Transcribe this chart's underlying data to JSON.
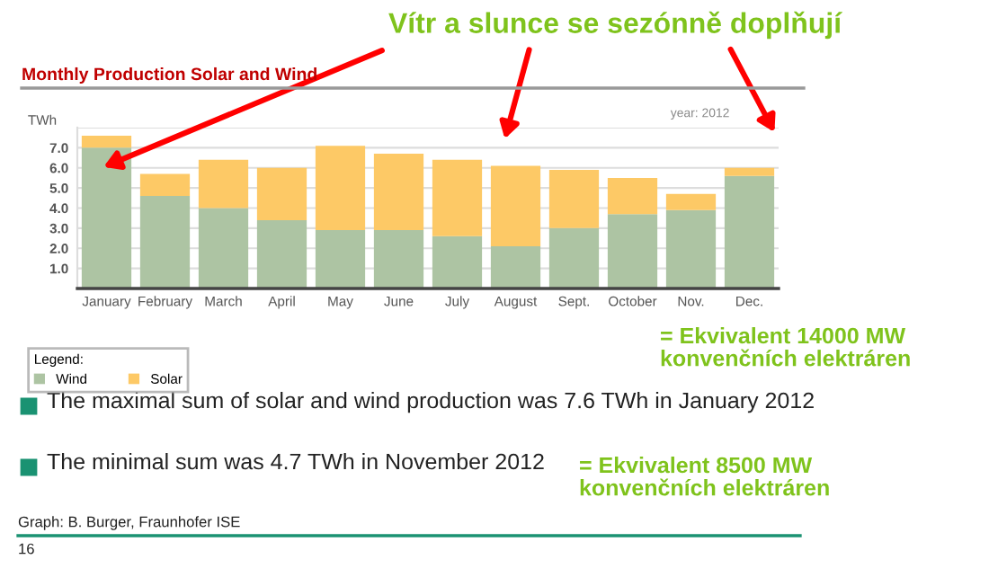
{
  "chart_data": {
    "type": "bar",
    "title": "Monthly Production Solar and Wind",
    "ylabel": "TWh",
    "legend_title": "Legend:",
    "stacked": true,
    "categories": [
      "January",
      "February",
      "March",
      "April",
      "May",
      "June",
      "July",
      "August",
      "Sept.",
      "October",
      "Nov.",
      "Dec."
    ],
    "series": [
      {
        "name": "Wind",
        "color": "#adc4a3",
        "values": [
          7.0,
          4.6,
          4.0,
          3.4,
          2.9,
          2.9,
          2.6,
          2.1,
          3.0,
          3.7,
          3.9,
          5.6
        ]
      },
      {
        "name": "Solar",
        "color": "#fdc966",
        "values": [
          0.6,
          1.1,
          2.4,
          2.6,
          4.2,
          3.8,
          3.8,
          4.0,
          2.9,
          1.8,
          0.8,
          0.4
        ]
      }
    ],
    "ylim": [
      0,
      8
    ],
    "yticks": [
      {
        "value": 1,
        "label": "1.0"
      },
      {
        "value": 2,
        "label": "2.0"
      },
      {
        "value": 3,
        "label": "3.0"
      },
      {
        "value": 4,
        "label": "4.0"
      },
      {
        "value": 5,
        "label": "5.0"
      },
      {
        "value": 6,
        "label": "6.0"
      },
      {
        "value": 7,
        "label": "7.0"
      },
      {
        "value": 8,
        "label": null
      }
    ],
    "grid": "y",
    "legend": "bottom",
    "annotations": [
      "Vítr a slunce se sezónně doplňují",
      "year: 2012",
      "The maximal sum of solar and wind production was 7.6 TWh in January 2012",
      "The minimal sum was 4.7 TWh in November 2012",
      "= Ekvivalent 14000 MW\nkonvenčních elektráren",
      "= Ekvivalent 8500 MW\nkonvenčních elektráren",
      "Graph: B. Burger, Fraunhofer ISE",
      "16"
    ]
  }
}
